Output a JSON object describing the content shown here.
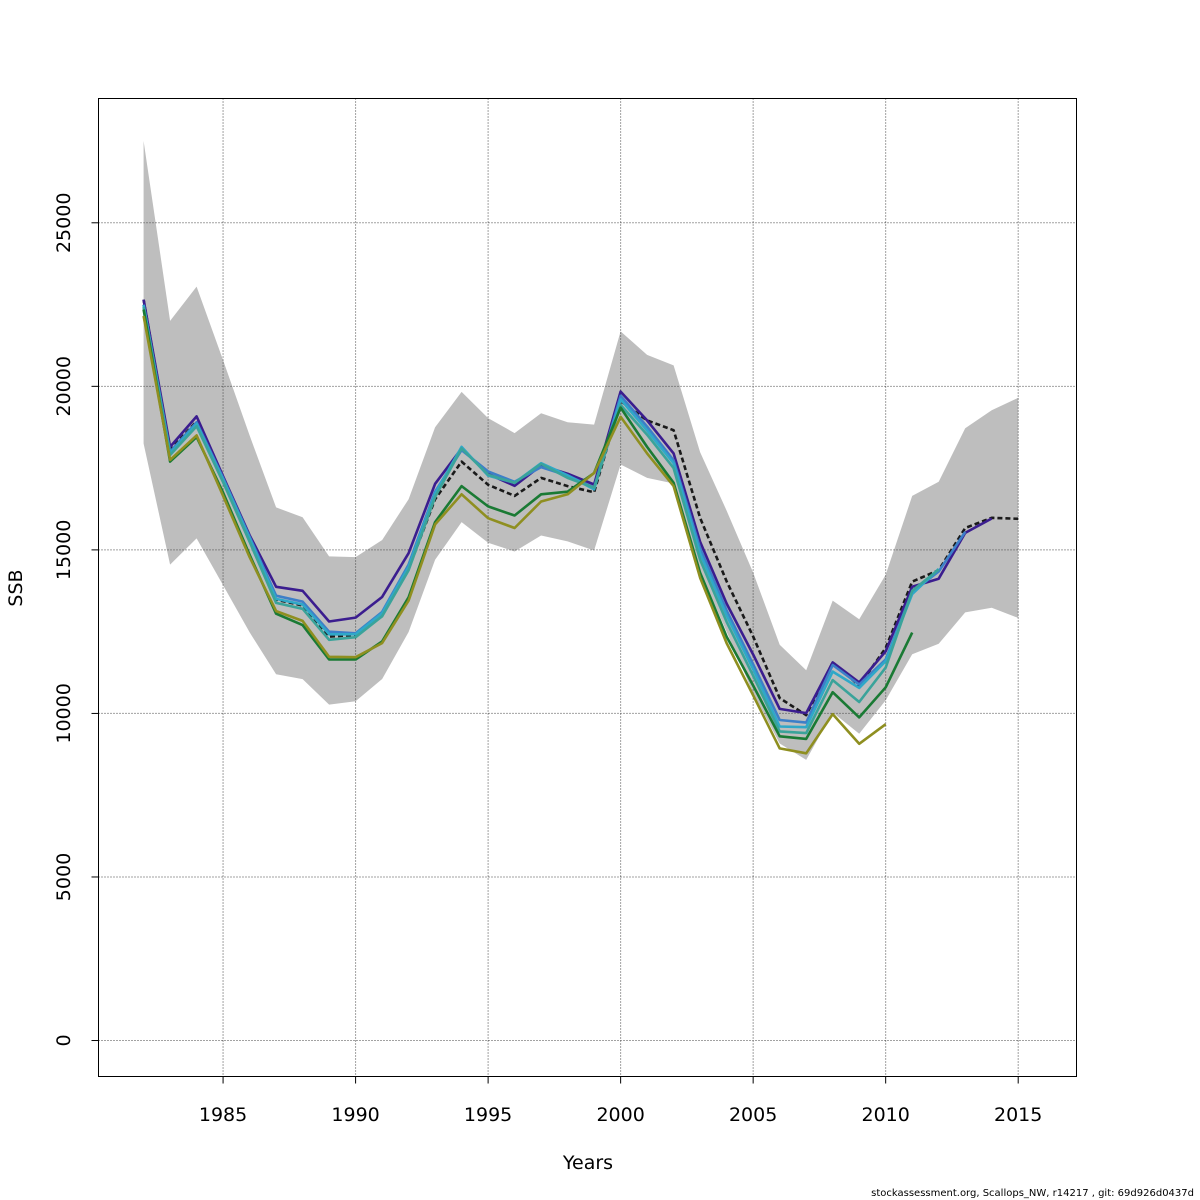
{
  "chart_data": {
    "type": "line",
    "title": "",
    "xlabel": "Years",
    "ylabel": "SSB",
    "xlim": [
      1980.3,
      2017.2
    ],
    "ylim": [
      -1100,
      28800
    ],
    "xticks": [
      1985,
      1990,
      1995,
      2000,
      2005,
      2010,
      2015
    ],
    "yticks": [
      0,
      5000,
      10000,
      15000,
      20000,
      25000
    ],
    "grid": true,
    "legend": "none",
    "band": {
      "color": "#bebebe",
      "years": [
        1982,
        1983,
        1984,
        1985,
        1986,
        1987,
        1988,
        1989,
        1990,
        1991,
        1992,
        1993,
        1994,
        1995,
        1996,
        1997,
        1998,
        1999,
        2000,
        2001,
        2002,
        2003,
        2004,
        2005,
        2006,
        2007,
        2008,
        2009,
        2010,
        2011,
        2012,
        2013,
        2014,
        2015
      ],
      "upper": [
        27500,
        22000,
        23050,
        20800,
        18500,
        16300,
        16000,
        14800,
        14780,
        15300,
        16550,
        18750,
        19830,
        19030,
        18570,
        19180,
        18900,
        18830,
        21680,
        20960,
        20640,
        17990,
        16200,
        14300,
        12100,
        11320,
        13450,
        12880,
        14240,
        16650,
        17080,
        18720,
        19270,
        19650
      ],
      "lower": [
        18250,
        14550,
        15350,
        13920,
        12480,
        11200,
        11050,
        10270,
        10370,
        11050,
        12490,
        14700,
        15850,
        15220,
        14950,
        15440,
        15260,
        14980,
        17610,
        17200,
        17030,
        14350,
        12500,
        10620,
        9080,
        8580,
        10030,
        9380,
        10400,
        11810,
        12130,
        13090,
        13230,
        12920
      ]
    },
    "series": [
      {
        "color": "#1a1a1a",
        "dashed": true,
        "x": [
          1982,
          1983,
          1984,
          1985,
          1986,
          1987,
          1988,
          1989,
          1990,
          1991,
          1992,
          1993,
          1994,
          1995,
          1996,
          1997,
          1998,
          1999,
          2000,
          2001,
          2002,
          2003,
          2004,
          2005,
          2006,
          2007,
          2008,
          2009,
          2010,
          2011,
          2012,
          2013,
          2014,
          2015
        ],
        "y": [
          22650,
          18050,
          18930,
          17150,
          15300,
          13480,
          13300,
          12350,
          12400,
          13020,
          14420,
          16550,
          17700,
          16990,
          16650,
          17200,
          16950,
          16760,
          19550,
          18960,
          18660,
          15980,
          14040,
          12350,
          10470,
          9950,
          11560,
          10850,
          12000,
          14030,
          14380,
          15670,
          15980,
          15950
        ]
      },
      {
        "color": "#3b1d8f",
        "x": [
          1982,
          1983,
          1984,
          1985,
          1986,
          1987,
          1988,
          1989,
          1990,
          1991,
          1992,
          1993,
          1994,
          1995,
          1996,
          1997,
          1998,
          1999,
          2000,
          2001,
          2002,
          2003,
          2004,
          2005,
          2006,
          2007,
          2008,
          2009,
          2010,
          2011,
          2012,
          2013,
          2014
        ],
        "y": [
          22650,
          18150,
          19080,
          17250,
          15450,
          13870,
          13750,
          12810,
          12930,
          13560,
          14900,
          17020,
          18100,
          17320,
          16960,
          17580,
          17330,
          17000,
          19840,
          18960,
          17950,
          15250,
          13360,
          11800,
          10140,
          10010,
          11560,
          10950,
          11900,
          13870,
          14120,
          15520,
          15960
        ]
      },
      {
        "color": "#3d7fc8",
        "x": [
          1982,
          1983,
          1984,
          1985,
          1986,
          1987,
          1988,
          1989,
          1990,
          1991,
          1992,
          1993,
          1994,
          1995,
          1996,
          1997,
          1998,
          1999,
          2000,
          2001,
          2002,
          2003,
          2004,
          2005,
          2006,
          2007,
          2008,
          2009,
          2010,
          2011,
          2012,
          2013
        ],
        "y": [
          22500,
          18000,
          18900,
          17200,
          15400,
          13600,
          13420,
          12500,
          12450,
          13100,
          14550,
          16780,
          18050,
          17400,
          17080,
          17530,
          17270,
          16900,
          19710,
          18770,
          17740,
          15050,
          13150,
          11500,
          9800,
          9720,
          11480,
          10880,
          11650,
          13720,
          14340,
          15550
        ]
      },
      {
        "color": "#2fa8c8",
        "x": [
          1982,
          1983,
          1984,
          1985,
          1986,
          1987,
          1988,
          1989,
          1990,
          1991,
          1992,
          1993,
          1994,
          1995,
          1996,
          1997,
          1998,
          1999,
          2000,
          2001,
          2002,
          2003,
          2004,
          2005,
          2006,
          2007,
          2008,
          2009,
          2010,
          2011,
          2012
        ],
        "y": [
          22480,
          17950,
          18850,
          17150,
          15350,
          13500,
          13330,
          12420,
          12420,
          13060,
          14480,
          16720,
          18150,
          17270,
          17050,
          17650,
          17280,
          16850,
          19600,
          18650,
          17650,
          14900,
          13000,
          11350,
          9600,
          9580,
          11280,
          10780,
          11600,
          13650,
          14420
        ]
      },
      {
        "color": "#3aa39a",
        "x": [
          1982,
          1983,
          1984,
          1985,
          1986,
          1987,
          1988,
          1989,
          1990,
          1991,
          1992,
          1993,
          1994,
          1995,
          1996,
          1997,
          1998,
          1999,
          2000,
          2001,
          2002,
          2003,
          2004,
          2005,
          2006,
          2007,
          2008,
          2009,
          2010,
          2011,
          2012
        ],
        "y": [
          22420,
          17900,
          18780,
          17070,
          15250,
          13380,
          13200,
          12250,
          12330,
          12970,
          14380,
          16620,
          18100,
          17300,
          17050,
          17630,
          17200,
          16900,
          19430,
          18520,
          17500,
          14700,
          12800,
          11150,
          9450,
          9400,
          11020,
          10350,
          11400,
          13750,
          14400
        ]
      },
      {
        "color": "#1a7a34",
        "x": [
          1982,
          1983,
          1984,
          1985,
          1986,
          1987,
          1988,
          1989,
          1990,
          1991,
          1992,
          1993,
          1994,
          1995,
          1996,
          1997,
          1998,
          1999,
          2000,
          2001,
          2002,
          2003,
          2004,
          2005,
          2006,
          2007,
          2008,
          2009,
          2010,
          2011
        ],
        "y": [
          22350,
          17700,
          18450,
          16750,
          14850,
          13050,
          12700,
          11650,
          11650,
          12200,
          13550,
          15850,
          16950,
          16330,
          16050,
          16700,
          16780,
          17350,
          19350,
          18150,
          17050,
          14300,
          12350,
          10850,
          9300,
          9220,
          10650,
          9880,
          10800,
          12470
        ]
      },
      {
        "color": "#8f8f20",
        "x": [
          1982,
          1983,
          1984,
          1985,
          1986,
          1987,
          1988,
          1989,
          1990,
          1991,
          1992,
          1993,
          1994,
          1995,
          1996,
          1997,
          1998,
          1999,
          2000,
          2001,
          2002,
          2003,
          2004,
          2005,
          2006,
          2007,
          2008,
          2009,
          2010
        ],
        "y": [
          22150,
          17750,
          18500,
          16650,
          14780,
          13130,
          12830,
          11730,
          11720,
          12150,
          13450,
          15780,
          16700,
          15970,
          15670,
          16480,
          16700,
          17350,
          19070,
          17950,
          16950,
          14150,
          12150,
          10550,
          8930,
          8780,
          9980,
          9070,
          9670
        ]
      }
    ]
  },
  "footer": {
    "text": "stockassessment.org, Scallops_NW, r14217 , git: 69d926d0437d"
  }
}
